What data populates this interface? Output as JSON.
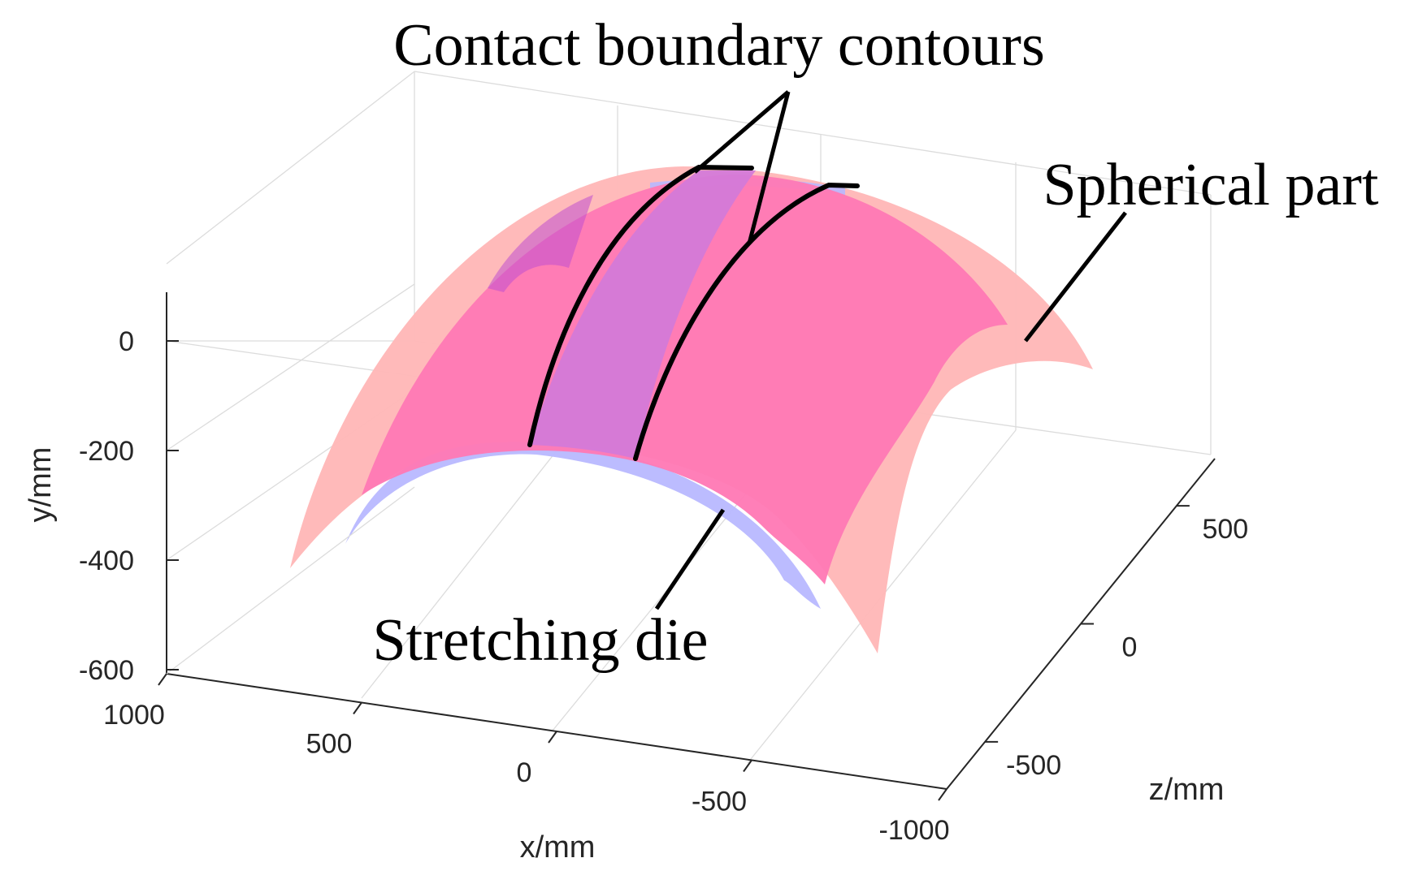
{
  "chart_data": {
    "type": "surface3d",
    "title": "",
    "axes": {
      "x": {
        "label": "x/mm",
        "range": [
          -1000,
          1000
        ],
        "ticks": [
          "1000",
          "500",
          "0",
          "-500",
          "-1000"
        ]
      },
      "y": {
        "label": "y/mm",
        "range": [
          -600,
          100
        ],
        "ticks": [
          "0",
          "-200",
          "-400",
          "-600"
        ]
      },
      "z": {
        "label": "z/mm",
        "range": [
          -700,
          700
        ],
        "ticks": [
          "500",
          "0",
          "-500"
        ]
      }
    },
    "grid": true,
    "surfaces": [
      {
        "name": "Spherical part",
        "color": "#ffb3b3"
      },
      {
        "name": "Stretching die",
        "color": "#b3b3ff"
      }
    ],
    "contact_region_color": "#ff66aa",
    "contact_band_color": "#d77ad9",
    "annotations": [
      {
        "text": "Contact boundary contours"
      },
      {
        "text": "Spherical part"
      },
      {
        "text": "Stretching die"
      }
    ]
  }
}
